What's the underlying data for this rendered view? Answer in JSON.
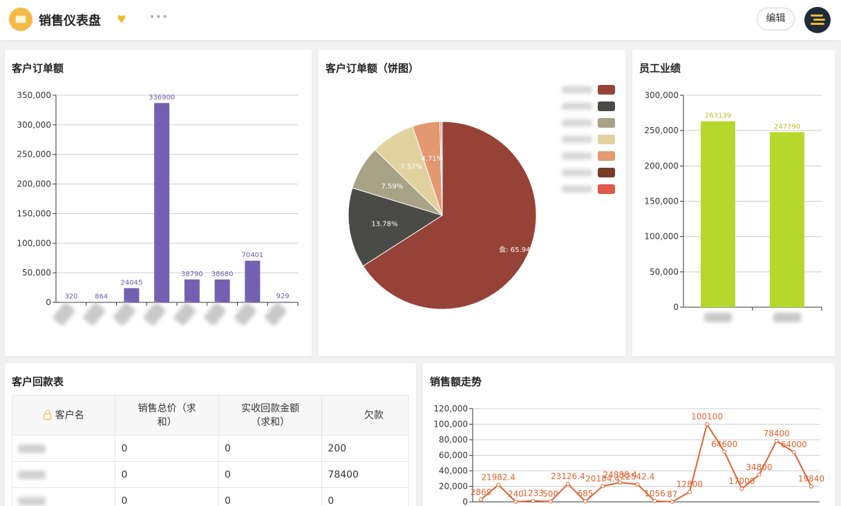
{
  "header": {
    "title": "销售仪表盘",
    "more": "•••",
    "edit_label": "编辑"
  },
  "cards": {
    "orders_bar": {
      "title": "客户订单额"
    },
    "orders_pie": {
      "title": "客户订单额（饼图）"
    },
    "staff": {
      "title": "员工业绩"
    },
    "payments": {
      "title": "客户回款表"
    },
    "trend": {
      "title": "销售额走势"
    }
  },
  "payment_table": {
    "headers": [
      "客户名",
      "销售总价（求\n和）",
      "实收回款金额\n（求和）",
      "欠款"
    ],
    "rows": [
      {
        "total": "0",
        "received": "0",
        "debt": "200"
      },
      {
        "total": "0",
        "received": "0",
        "debt": "78400"
      },
      {
        "total": "0",
        "received": "0",
        "debt": "0"
      }
    ]
  },
  "chart_data": [
    {
      "id": "orders_bar",
      "type": "bar",
      "values": [
        320,
        864,
        24045,
        336900,
        38790,
        38680,
        70401,
        929
      ],
      "color": "#7460b2",
      "ylim": [
        0,
        350000
      ],
      "yticks": [
        "0",
        "50,000",
        "100,000",
        "150,000",
        "200,000",
        "250,000",
        "300,000",
        "350,000"
      ]
    },
    {
      "id": "orders_pie",
      "type": "pie",
      "slices": [
        {
          "label": "会: 65.94%",
          "value": 65.94,
          "color": "#974237"
        },
        {
          "label": "13.78%",
          "value": 13.78,
          "color": "#4a4a47"
        },
        {
          "label": "7.59%",
          "value": 7.59,
          "color": "#a8a286"
        },
        {
          "label": "7.57%",
          "value": 7.57,
          "color": "#e1d2a0"
        },
        {
          "label": "4.71%",
          "value": 4.71,
          "color": "#e39870"
        },
        {
          "label": "",
          "value": 0.2,
          "color": "#783c28"
        },
        {
          "label": "",
          "value": 0.21,
          "color": "#dd5a4a"
        }
      ],
      "legend_position": "top-right"
    },
    {
      "id": "staff",
      "type": "bar",
      "values": [
        263139,
        247790
      ],
      "color": "#b6d72b",
      "ylim": [
        0,
        300000
      ],
      "yticks": [
        "0",
        "50,000",
        "100,000",
        "150,000",
        "200,000",
        "250,000",
        "300,000"
      ]
    },
    {
      "id": "trend",
      "type": "line",
      "values": [
        2869,
        21982.4,
        240,
        1233,
        500,
        23126.4,
        685,
        20184.4,
        24888.4,
        22542.4,
        1056,
        87,
        12800,
        100100,
        64600,
        17000,
        34800,
        78400,
        64000,
        19840
      ],
      "labels": [
        "2869",
        "21982.4",
        "240",
        "1233",
        "500",
        "23126.4",
        "685",
        "20184.4",
        "24888.4",
        "22542.4",
        "1056",
        "87",
        "12800",
        "100100",
        "64600",
        "17000",
        "34800",
        "78400",
        "64000",
        "19840"
      ],
      "color": "#e0612f",
      "ylim": [
        0,
        120000
      ],
      "yticks": [
        "0",
        "20,000",
        "40,000",
        "60,000",
        "80,000",
        "100,000",
        "120,000"
      ]
    }
  ]
}
